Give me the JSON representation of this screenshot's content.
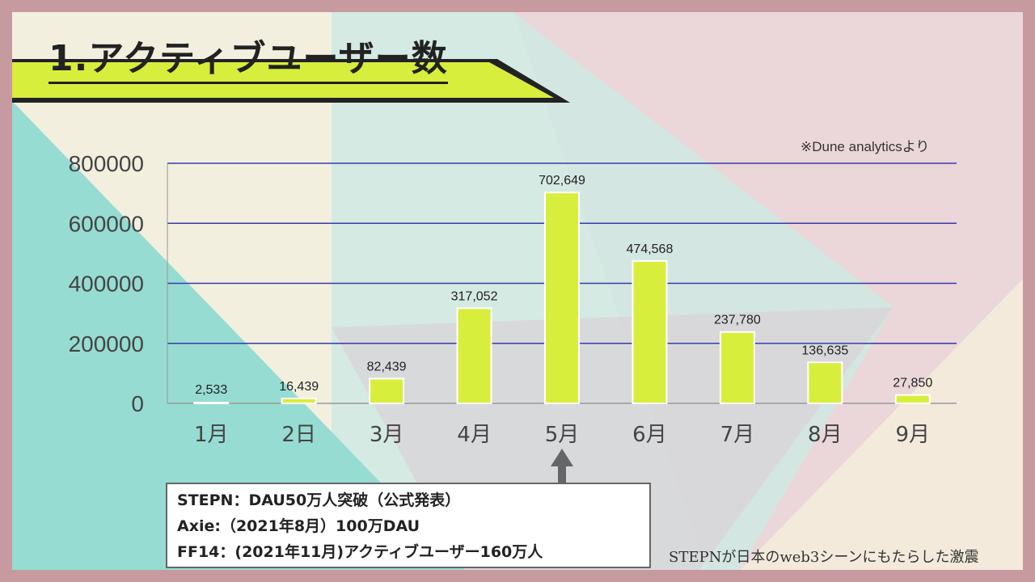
{
  "slide": {
    "title": "1.アクティブユーザー数",
    "source_note": "※Dune analyticsより",
    "footer": "STEPNが日本のweb3シーンにもたらした激震"
  },
  "notes": [
    "STEPN：DAU50万人突破（公式発表）",
    "Axie:（2021年8月）100万DAU",
    "FF14：(2021年11月)アクティブユーザー160万人"
  ],
  "colors": {
    "bar": "#d8ee3c",
    "gridline": "#3a3aa8",
    "title_band": "#d8ee3c",
    "teal": "#96dcd2",
    "pink": "#e9d3d8"
  },
  "chart_data": {
    "type": "bar",
    "categories": [
      "1月",
      "2日",
      "3月",
      "4月",
      "5月",
      "6月",
      "7月",
      "8月",
      "9月"
    ],
    "values": [
      2533,
      16439,
      82439,
      317052,
      702649,
      474568,
      237780,
      136635,
      27850
    ],
    "data_labels": [
      "2,533",
      "16,439",
      "82,439",
      "317,052",
      "702,649",
      "474,568",
      "237,780",
      "136,635",
      "27,850"
    ],
    "y_ticks": [
      "0",
      "200000",
      "400000",
      "600000",
      "800000"
    ],
    "ylim": [
      0,
      800000
    ],
    "grid": true,
    "legend": "none"
  }
}
